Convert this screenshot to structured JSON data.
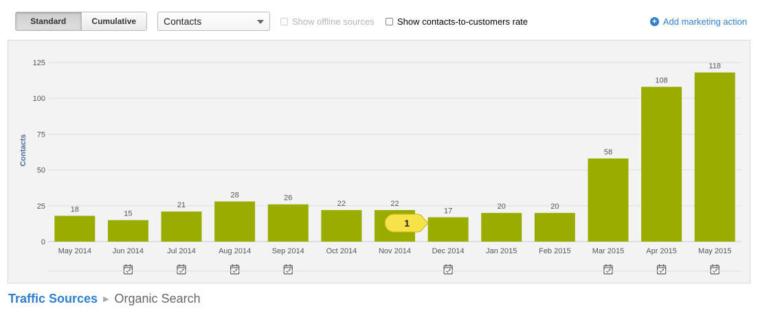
{
  "toolbar": {
    "view_standard": "Standard",
    "view_cumulative": "Cumulative",
    "metric_select": "Contacts",
    "show_offline_sources": "Show offline sources",
    "show_rate": "Show contacts-to-customers rate",
    "add_marketing_action": "Add marketing action"
  },
  "chart_data": {
    "type": "bar",
    "ylabel": "Contacts",
    "ylim": [
      0,
      125
    ],
    "yticks": [
      0,
      25,
      50,
      75,
      100,
      125
    ],
    "categories": [
      "May 2014",
      "Jun 2014",
      "Jul 2014",
      "Aug 2014",
      "Sep 2014",
      "Oct 2014",
      "Nov 2014",
      "Dec 2014",
      "Jan 2015",
      "Feb 2015",
      "Mar 2015",
      "Apr 2015",
      "May 2015"
    ],
    "values": [
      18,
      15,
      21,
      28,
      26,
      22,
      22,
      17,
      20,
      20,
      58,
      108,
      118
    ],
    "bar_color": "#99ad00",
    "annotation": {
      "label": "1",
      "category": "Dec 2014"
    },
    "marker_months": [
      "Jun 2014",
      "Jul 2014",
      "Aug 2014",
      "Sep 2014",
      "Dec 2014",
      "Mar 2015",
      "Apr 2015",
      "May 2015"
    ]
  },
  "breadcrumb": {
    "parent": "Traffic Sources",
    "current": "Organic Search"
  }
}
